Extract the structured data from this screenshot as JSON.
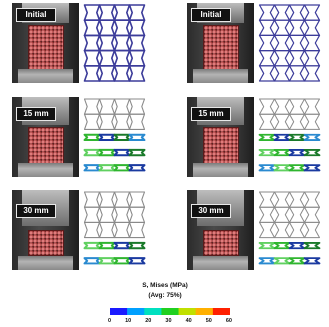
{
  "panels": {
    "left": [
      {
        "label": "Initial"
      },
      {
        "label": "15 mm"
      },
      {
        "label": "30 mm"
      }
    ],
    "right": [
      {
        "label": "Initial"
      },
      {
        "label": "15 mm"
      },
      {
        "label": "30 mm"
      }
    ]
  },
  "legend": {
    "title": "S, Mises (MPa)",
    "subtitle": "(Avg: 75%)",
    "ticks": [
      "0",
      "10",
      "20",
      "30",
      "40",
      "50",
      "60"
    ],
    "colors": [
      "#1a1aff",
      "#00a0ff",
      "#00e0c0",
      "#20d020",
      "#c0e000",
      "#ffb000",
      "#ff2000"
    ]
  },
  "colors": {
    "lattice_initial": "#3c3c9a",
    "lattice_outline": "#8a8a8a",
    "stress_colors": [
      "#1a7a2a",
      "#2fb52f",
      "#2a8ad0",
      "#1a3aa0",
      "#60d060"
    ]
  }
}
